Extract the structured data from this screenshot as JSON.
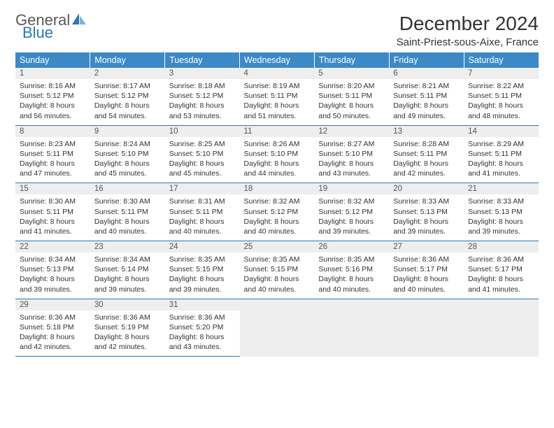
{
  "brand": {
    "word1": "General",
    "word2": "Blue",
    "color_word2": "#2a77bb",
    "color_word1": "#5a5a5a"
  },
  "title": "December 2024",
  "location": "Saint-Priest-sous-Aixe, France",
  "header_bg": "#3b89c7",
  "rule_color": "#2a77bb",
  "daynum_bg": "#eeeeee",
  "weekdays": [
    "Sunday",
    "Monday",
    "Tuesday",
    "Wednesday",
    "Thursday",
    "Friday",
    "Saturday"
  ],
  "weeks": [
    [
      {
        "n": "1",
        "sr": "Sunrise: 8:16 AM",
        "ss": "Sunset: 5:12 PM",
        "dl1": "Daylight: 8 hours",
        "dl2": "and 56 minutes."
      },
      {
        "n": "2",
        "sr": "Sunrise: 8:17 AM",
        "ss": "Sunset: 5:12 PM",
        "dl1": "Daylight: 8 hours",
        "dl2": "and 54 minutes."
      },
      {
        "n": "3",
        "sr": "Sunrise: 8:18 AM",
        "ss": "Sunset: 5:12 PM",
        "dl1": "Daylight: 8 hours",
        "dl2": "and 53 minutes."
      },
      {
        "n": "4",
        "sr": "Sunrise: 8:19 AM",
        "ss": "Sunset: 5:11 PM",
        "dl1": "Daylight: 8 hours",
        "dl2": "and 51 minutes."
      },
      {
        "n": "5",
        "sr": "Sunrise: 8:20 AM",
        "ss": "Sunset: 5:11 PM",
        "dl1": "Daylight: 8 hours",
        "dl2": "and 50 minutes."
      },
      {
        "n": "6",
        "sr": "Sunrise: 8:21 AM",
        "ss": "Sunset: 5:11 PM",
        "dl1": "Daylight: 8 hours",
        "dl2": "and 49 minutes."
      },
      {
        "n": "7",
        "sr": "Sunrise: 8:22 AM",
        "ss": "Sunset: 5:11 PM",
        "dl1": "Daylight: 8 hours",
        "dl2": "and 48 minutes."
      }
    ],
    [
      {
        "n": "8",
        "sr": "Sunrise: 8:23 AM",
        "ss": "Sunset: 5:11 PM",
        "dl1": "Daylight: 8 hours",
        "dl2": "and 47 minutes."
      },
      {
        "n": "9",
        "sr": "Sunrise: 8:24 AM",
        "ss": "Sunset: 5:10 PM",
        "dl1": "Daylight: 8 hours",
        "dl2": "and 45 minutes."
      },
      {
        "n": "10",
        "sr": "Sunrise: 8:25 AM",
        "ss": "Sunset: 5:10 PM",
        "dl1": "Daylight: 8 hours",
        "dl2": "and 45 minutes."
      },
      {
        "n": "11",
        "sr": "Sunrise: 8:26 AM",
        "ss": "Sunset: 5:10 PM",
        "dl1": "Daylight: 8 hours",
        "dl2": "and 44 minutes."
      },
      {
        "n": "12",
        "sr": "Sunrise: 8:27 AM",
        "ss": "Sunset: 5:10 PM",
        "dl1": "Daylight: 8 hours",
        "dl2": "and 43 minutes."
      },
      {
        "n": "13",
        "sr": "Sunrise: 8:28 AM",
        "ss": "Sunset: 5:11 PM",
        "dl1": "Daylight: 8 hours",
        "dl2": "and 42 minutes."
      },
      {
        "n": "14",
        "sr": "Sunrise: 8:29 AM",
        "ss": "Sunset: 5:11 PM",
        "dl1": "Daylight: 8 hours",
        "dl2": "and 41 minutes."
      }
    ],
    [
      {
        "n": "15",
        "sr": "Sunrise: 8:30 AM",
        "ss": "Sunset: 5:11 PM",
        "dl1": "Daylight: 8 hours",
        "dl2": "and 41 minutes."
      },
      {
        "n": "16",
        "sr": "Sunrise: 8:30 AM",
        "ss": "Sunset: 5:11 PM",
        "dl1": "Daylight: 8 hours",
        "dl2": "and 40 minutes."
      },
      {
        "n": "17",
        "sr": "Sunrise: 8:31 AM",
        "ss": "Sunset: 5:11 PM",
        "dl1": "Daylight: 8 hours",
        "dl2": "and 40 minutes."
      },
      {
        "n": "18",
        "sr": "Sunrise: 8:32 AM",
        "ss": "Sunset: 5:12 PM",
        "dl1": "Daylight: 8 hours",
        "dl2": "and 40 minutes."
      },
      {
        "n": "19",
        "sr": "Sunrise: 8:32 AM",
        "ss": "Sunset: 5:12 PM",
        "dl1": "Daylight: 8 hours",
        "dl2": "and 39 minutes."
      },
      {
        "n": "20",
        "sr": "Sunrise: 8:33 AM",
        "ss": "Sunset: 5:13 PM",
        "dl1": "Daylight: 8 hours",
        "dl2": "and 39 minutes."
      },
      {
        "n": "21",
        "sr": "Sunrise: 8:33 AM",
        "ss": "Sunset: 5:13 PM",
        "dl1": "Daylight: 8 hours",
        "dl2": "and 39 minutes."
      }
    ],
    [
      {
        "n": "22",
        "sr": "Sunrise: 8:34 AM",
        "ss": "Sunset: 5:13 PM",
        "dl1": "Daylight: 8 hours",
        "dl2": "and 39 minutes."
      },
      {
        "n": "23",
        "sr": "Sunrise: 8:34 AM",
        "ss": "Sunset: 5:14 PM",
        "dl1": "Daylight: 8 hours",
        "dl2": "and 39 minutes."
      },
      {
        "n": "24",
        "sr": "Sunrise: 8:35 AM",
        "ss": "Sunset: 5:15 PM",
        "dl1": "Daylight: 8 hours",
        "dl2": "and 39 minutes."
      },
      {
        "n": "25",
        "sr": "Sunrise: 8:35 AM",
        "ss": "Sunset: 5:15 PM",
        "dl1": "Daylight: 8 hours",
        "dl2": "and 40 minutes."
      },
      {
        "n": "26",
        "sr": "Sunrise: 8:35 AM",
        "ss": "Sunset: 5:16 PM",
        "dl1": "Daylight: 8 hours",
        "dl2": "and 40 minutes."
      },
      {
        "n": "27",
        "sr": "Sunrise: 8:36 AM",
        "ss": "Sunset: 5:17 PM",
        "dl1": "Daylight: 8 hours",
        "dl2": "and 40 minutes."
      },
      {
        "n": "28",
        "sr": "Sunrise: 8:36 AM",
        "ss": "Sunset: 5:17 PM",
        "dl1": "Daylight: 8 hours",
        "dl2": "and 41 minutes."
      }
    ],
    [
      {
        "n": "29",
        "sr": "Sunrise: 8:36 AM",
        "ss": "Sunset: 5:18 PM",
        "dl1": "Daylight: 8 hours",
        "dl2": "and 42 minutes."
      },
      {
        "n": "30",
        "sr": "Sunrise: 8:36 AM",
        "ss": "Sunset: 5:19 PM",
        "dl1": "Daylight: 8 hours",
        "dl2": "and 42 minutes."
      },
      {
        "n": "31",
        "sr": "Sunrise: 8:36 AM",
        "ss": "Sunset: 5:20 PM",
        "dl1": "Daylight: 8 hours",
        "dl2": "and 43 minutes."
      },
      null,
      null,
      null,
      null
    ]
  ]
}
